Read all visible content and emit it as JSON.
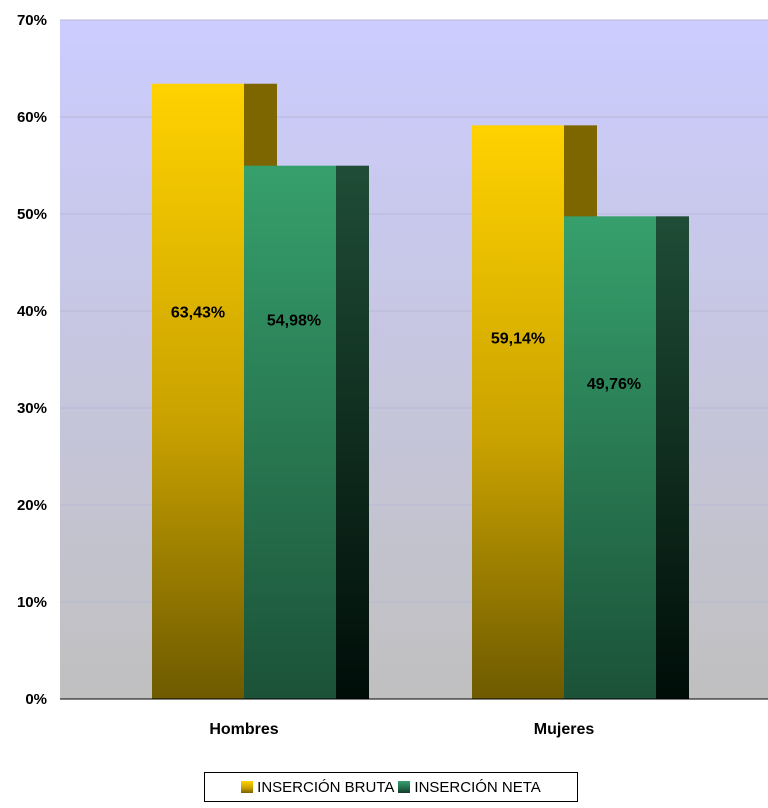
{
  "chart_data": {
    "type": "bar",
    "categories": [
      "Hombres",
      "Mujeres"
    ],
    "series": [
      {
        "name": "INSERCIÓN BRUTA",
        "values": [
          63.43,
          59.14
        ],
        "labels": [
          "63,43%",
          "59,14%"
        ],
        "color": "#ffcc00"
      },
      {
        "name": "INSERCIÓN NETA",
        "values": [
          54.98,
          49.76
        ],
        "labels": [
          "54,98%",
          "49,76%"
        ],
        "color": "#339966"
      }
    ],
    "ylim": [
      0,
      70
    ],
    "yticks": [
      0,
      10,
      20,
      30,
      40,
      50,
      60,
      70
    ],
    "ytick_labels": [
      "0%",
      "10%",
      "20%",
      "30%",
      "40%",
      "50%",
      "60%",
      "70%"
    ],
    "grid": true,
    "legend": "bottom",
    "plot_background_top": "#ccccff",
    "plot_background_bottom": "#c0c0c0"
  }
}
